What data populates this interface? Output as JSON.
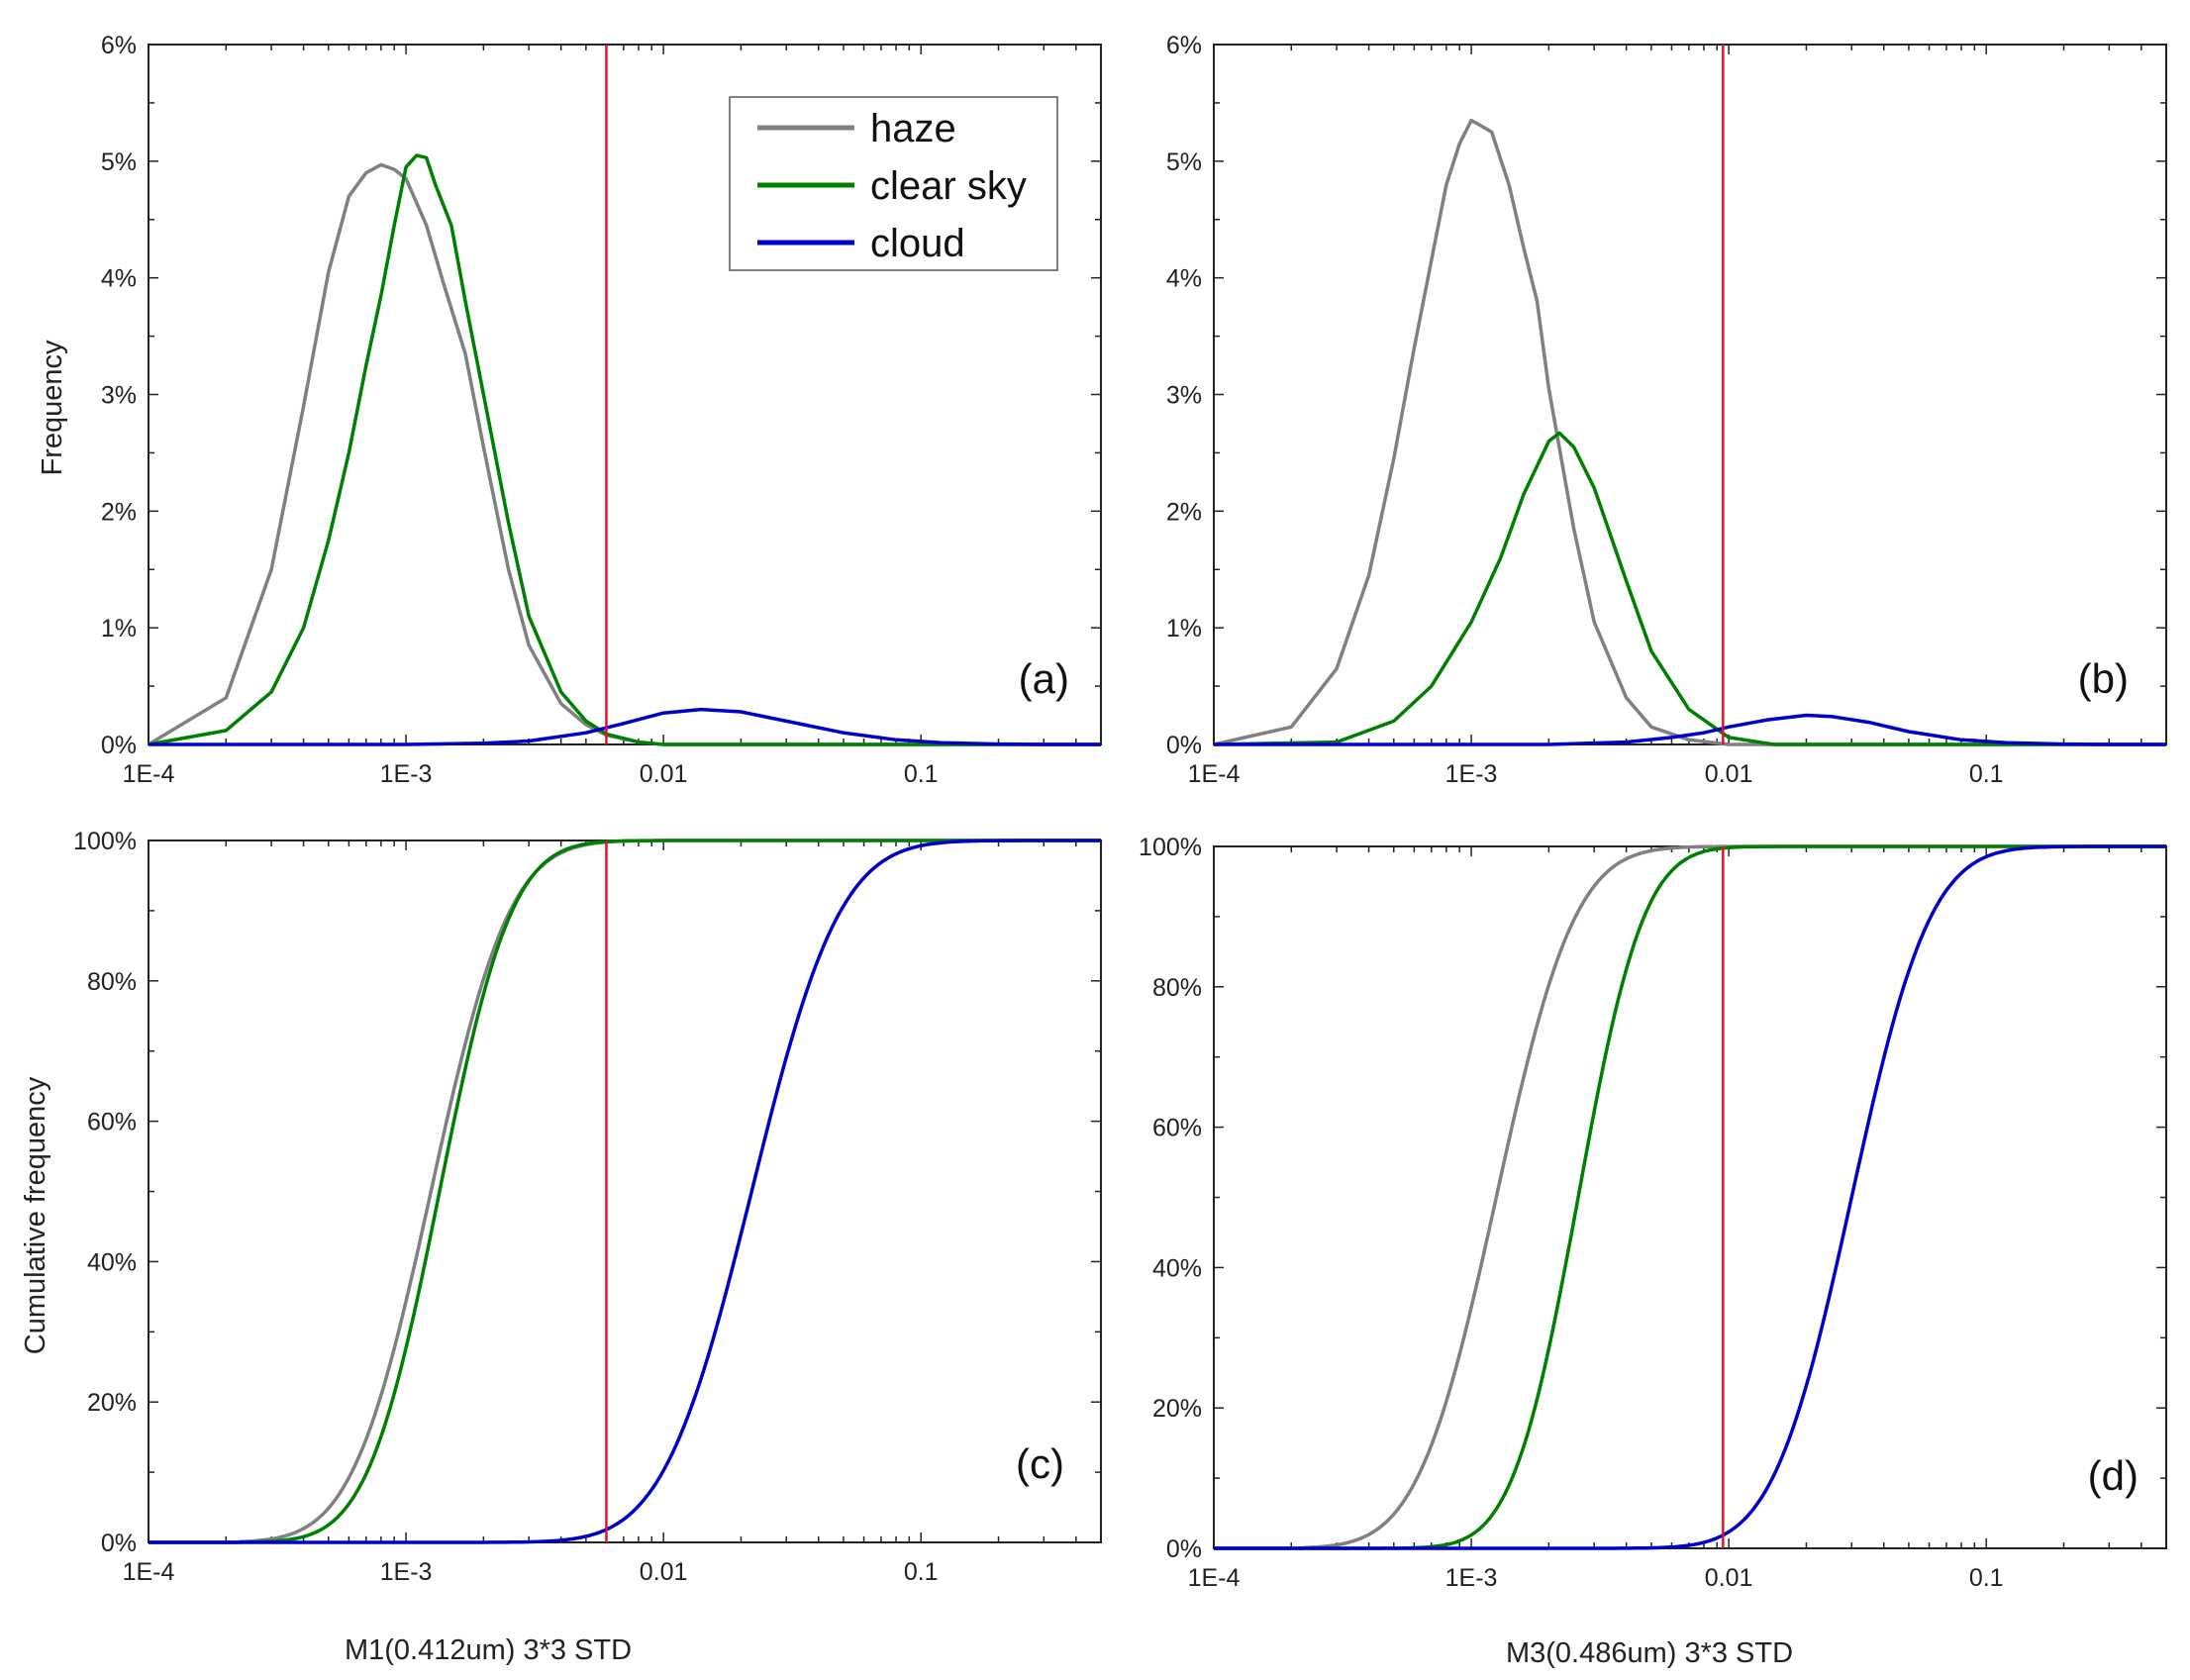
{
  "figure": {
    "ylabel_top": "Frequency",
    "ylabel_bottom": "Cumulative frequency",
    "xlabel_left": "M1(0.412um) 3*3 STD",
    "xlabel_right": "M3(0.486um) 3*3 STD"
  },
  "legend": {
    "items": [
      {
        "label": "haze",
        "color": "#808080"
      },
      {
        "label": "clear sky",
        "color": "#008000"
      },
      {
        "label": "cloud",
        "color": "#0000cc"
      }
    ]
  },
  "colors": {
    "haze": "#808080",
    "clear": "#008000",
    "cloud": "#0000cc",
    "threshold": "#e8102a",
    "axis": "#222222"
  },
  "chart_data": [
    {
      "id": "a",
      "type": "line",
      "panel_label": "(a)",
      "xscale": "log",
      "xlim": [
        0.0001,
        0.5
      ],
      "xticks": [
        0.0001,
        0.001,
        0.01,
        0.1
      ],
      "xtick_labels": [
        "1E-4",
        "1E-3",
        "0.01",
        "0.1"
      ],
      "ylim": [
        0,
        6
      ],
      "yticks": [
        0,
        1,
        2,
        3,
        4,
        5,
        6
      ],
      "ytick_labels": [
        "0%",
        "1%",
        "2%",
        "3%",
        "4%",
        "5%",
        "6%"
      ],
      "threshold_x": 0.006,
      "legend": true,
      "series": [
        {
          "name": "haze",
          "x": [
            0.0001,
            0.0002,
            0.0003,
            0.0004,
            0.0005,
            0.0006,
            0.0007,
            0.0008,
            0.0009,
            0.001,
            0.0012,
            0.0014,
            0.0017,
            0.002,
            0.0025,
            0.003,
            0.004,
            0.005,
            0.006,
            0.008,
            0.01
          ],
          "y": [
            0.0,
            0.4,
            1.5,
            2.9,
            4.05,
            4.7,
            4.9,
            4.97,
            4.93,
            4.85,
            4.45,
            3.95,
            3.35,
            2.55,
            1.5,
            0.85,
            0.35,
            0.17,
            0.08,
            0.02,
            0.0
          ]
        },
        {
          "name": "clear sky",
          "x": [
            0.0001,
            0.0002,
            0.0003,
            0.0004,
            0.0005,
            0.0006,
            0.0007,
            0.0008,
            0.0009,
            0.001,
            0.0011,
            0.0012,
            0.0013,
            0.0015,
            0.0017,
            0.002,
            0.0025,
            0.003,
            0.004,
            0.005,
            0.006,
            0.008,
            0.01
          ],
          "y": [
            0.0,
            0.12,
            0.45,
            1.0,
            1.75,
            2.5,
            3.25,
            3.85,
            4.45,
            4.95,
            5.05,
            5.03,
            4.8,
            4.45,
            3.8,
            3.0,
            1.9,
            1.1,
            0.45,
            0.2,
            0.09,
            0.02,
            0.0
          ]
        },
        {
          "name": "cloud",
          "x": [
            0.0001,
            0.001,
            0.002,
            0.003,
            0.005,
            0.007,
            0.01,
            0.014,
            0.02,
            0.03,
            0.05,
            0.08,
            0.12,
            0.2,
            0.3,
            0.5
          ],
          "y": [
            0.0,
            0.0,
            0.01,
            0.03,
            0.1,
            0.18,
            0.27,
            0.3,
            0.28,
            0.2,
            0.1,
            0.04,
            0.015,
            0.003,
            0.0,
            0.0
          ]
        }
      ]
    },
    {
      "id": "b",
      "type": "line",
      "panel_label": "(b)",
      "xscale": "log",
      "xlim": [
        0.0001,
        0.5
      ],
      "xticks": [
        0.0001,
        0.001,
        0.01,
        0.1
      ],
      "xtick_labels": [
        "1E-4",
        "1E-3",
        "0.01",
        "0.1"
      ],
      "ylim": [
        0,
        6
      ],
      "yticks": [
        0,
        1,
        2,
        3,
        4,
        5,
        6
      ],
      "ytick_labels": [
        "0%",
        "1%",
        "2%",
        "3%",
        "4%",
        "5%",
        "6%"
      ],
      "threshold_x": 0.0095,
      "legend": false,
      "series": [
        {
          "name": "haze",
          "x": [
            0.0001,
            0.0002,
            0.0003,
            0.0004,
            0.0005,
            0.0006,
            0.0007,
            0.0008,
            0.0009,
            0.001,
            0.0011,
            0.0012,
            0.0014,
            0.0016,
            0.0018,
            0.002,
            0.0025,
            0.003,
            0.004,
            0.005,
            0.007,
            0.01
          ],
          "y": [
            0.0,
            0.15,
            0.65,
            1.45,
            2.45,
            3.4,
            4.15,
            4.8,
            5.15,
            5.35,
            5.3,
            5.25,
            4.8,
            4.25,
            3.8,
            3.05,
            1.85,
            1.05,
            0.4,
            0.15,
            0.04,
            0.0
          ]
        },
        {
          "name": "clear sky",
          "x": [
            0.0001,
            0.0003,
            0.0005,
            0.0007,
            0.001,
            0.0013,
            0.0016,
            0.002,
            0.0022,
            0.0025,
            0.003,
            0.004,
            0.005,
            0.007,
            0.01,
            0.015
          ],
          "y": [
            0.0,
            0.02,
            0.2,
            0.5,
            1.05,
            1.6,
            2.15,
            2.6,
            2.67,
            2.55,
            2.2,
            1.4,
            0.8,
            0.3,
            0.06,
            0.0
          ]
        },
        {
          "name": "cloud",
          "x": [
            0.0001,
            0.002,
            0.004,
            0.006,
            0.008,
            0.01,
            0.014,
            0.02,
            0.025,
            0.035,
            0.05,
            0.08,
            0.12,
            0.2,
            0.3,
            0.5
          ],
          "y": [
            0.0,
            0.0,
            0.02,
            0.06,
            0.1,
            0.15,
            0.21,
            0.25,
            0.24,
            0.19,
            0.11,
            0.04,
            0.015,
            0.003,
            0.0,
            0.0
          ]
        }
      ]
    },
    {
      "id": "c",
      "type": "line",
      "panel_label": "(c)",
      "xscale": "log",
      "xlim": [
        0.0001,
        0.5
      ],
      "xticks": [
        0.0001,
        0.001,
        0.01,
        0.1
      ],
      "xtick_labels": [
        "1E-4",
        "1E-3",
        "0.01",
        "0.1"
      ],
      "ylim": [
        0,
        100
      ],
      "yticks": [
        0,
        20,
        40,
        60,
        80,
        100
      ],
      "ytick_labels": [
        "0%",
        "20%",
        "40%",
        "60%",
        "80%",
        "100%"
      ],
      "threshold_x": 0.006,
      "legend": false,
      "series": [
        {
          "name": "haze",
          "cdf": {
            "median": 0.00125,
            "sigma": 0.24,
            "lower": 0.00022,
            "upper": 0.05
          }
        },
        {
          "name": "clear sky",
          "cdf": {
            "median": 0.00135,
            "sigma": 0.22,
            "lower": 0.00022,
            "upper": 0.05
          }
        },
        {
          "name": "cloud",
          "cdf": {
            "median": 0.022,
            "sigma": 0.27,
            "lower": 0.002,
            "upper": 0.35
          }
        }
      ]
    },
    {
      "id": "d",
      "type": "line",
      "panel_label": "(d)",
      "xscale": "log",
      "xlim": [
        0.0001,
        0.5
      ],
      "xticks": [
        0.0001,
        0.001,
        0.01,
        0.1
      ],
      "xtick_labels": [
        "1E-4",
        "1E-3",
        "0.01",
        "0.1"
      ],
      "ylim": [
        0,
        100
      ],
      "yticks": [
        0,
        20,
        40,
        60,
        80,
        100
      ],
      "ytick_labels": [
        "0%",
        "20%",
        "40%",
        "60%",
        "80%",
        "100%"
      ],
      "threshold_x": 0.0095,
      "legend": false,
      "series": [
        {
          "name": "haze",
          "cdf": {
            "median": 0.00125,
            "sigma": 0.24,
            "lower": 0.00022,
            "upper": 0.05
          }
        },
        {
          "name": "clear sky",
          "cdf": {
            "median": 0.0026,
            "sigma": 0.2,
            "lower": 0.0004,
            "upper": 0.05
          }
        },
        {
          "name": "cloud",
          "cdf": {
            "median": 0.03,
            "sigma": 0.24,
            "lower": 0.003,
            "upper": 0.35
          }
        }
      ]
    }
  ]
}
